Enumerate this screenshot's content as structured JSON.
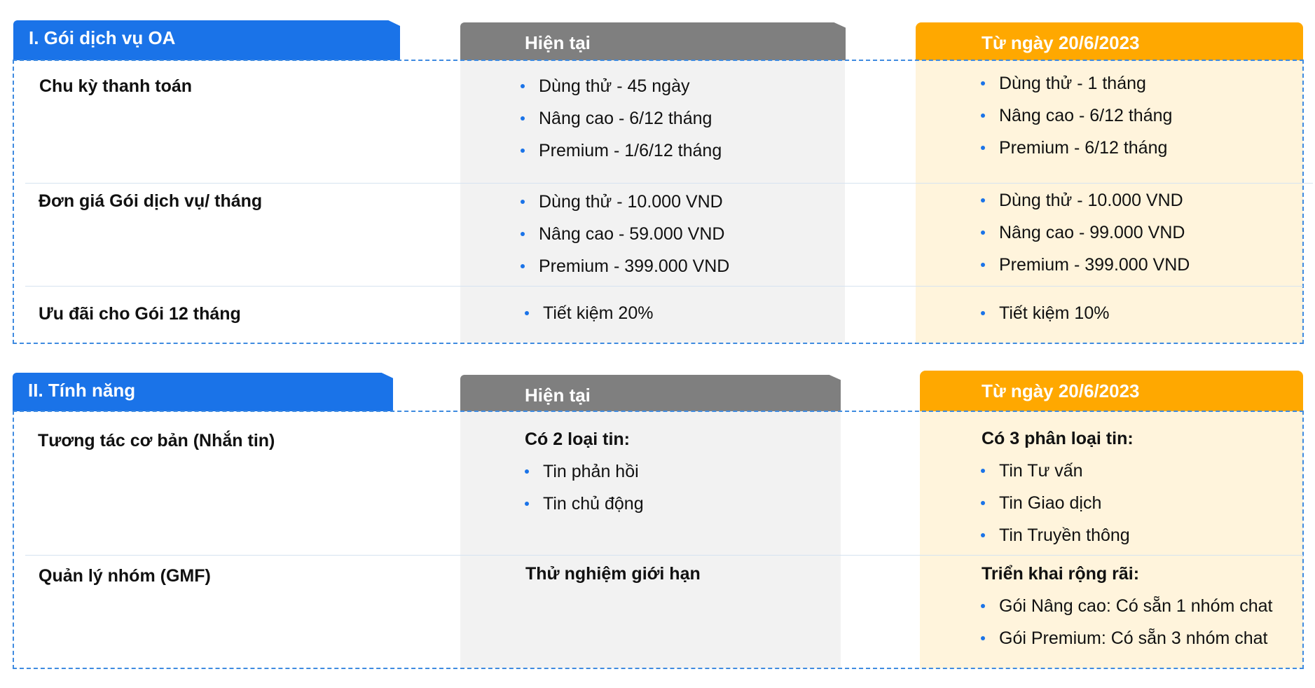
{
  "section1": {
    "title": "I. Gói dịch vụ OA",
    "current_label": "Hiện tại",
    "new_label": "Từ ngày 20/6/2023",
    "rows": [
      {
        "label": "Chu kỳ thanh toán",
        "current": [
          "Dùng thử - 45 ngày",
          "Nâng cao - 6/12 tháng",
          "Premium - 1/6/12 tháng"
        ],
        "new": [
          "Dùng thử - 1 tháng",
          "Nâng cao - 6/12 tháng",
          "Premium - 6/12 tháng"
        ]
      },
      {
        "label": "Đơn giá Gói dịch vụ/ tháng",
        "current": [
          "Dùng thử - 10.000 VND",
          "Nâng cao - 59.000 VND",
          "Premium - 399.000 VND"
        ],
        "new": [
          "Dùng thử - 10.000 VND",
          "Nâng cao - 99.000 VND",
          "Premium - 399.000 VND"
        ]
      },
      {
        "label": "Ưu đãi cho Gói 12 tháng",
        "current": [
          "Tiết kiệm 20%"
        ],
        "new": [
          "Tiết kiệm 10%"
        ]
      }
    ]
  },
  "section2": {
    "title": "II. Tính năng",
    "current_label": "Hiện tại",
    "new_label": "Từ ngày 20/6/2023",
    "rows": [
      {
        "label": "Tương tác cơ bản (Nhắn tin)",
        "current_heading": "Có 2 loại tin:",
        "current": [
          "Tin phản hồi",
          "Tin chủ động"
        ],
        "new_heading": "Có 3 phân loại tin:",
        "new": [
          "Tin Tư vấn",
          "Tin Giao dịch",
          "Tin Truyền thông"
        ]
      },
      {
        "label": "Quản lý nhóm (GMF)",
        "current_heading": "Thử nghiệm giới hạn",
        "current": [],
        "new_heading": "Triển khai rộng rãi:",
        "new": [
          "Gói Nâng cao: Có sẵn 1 nhóm chat",
          "Gói Premium: Có sẵn 3 nhóm chat"
        ]
      }
    ]
  },
  "colors": {
    "blue": "#1a73e8",
    "gray": "#7f7f7f",
    "orange": "#ffa800",
    "gray_column": "#f2f2f2",
    "cream_column": "#fff4dc",
    "dashed_border": "#3f8be0"
  }
}
